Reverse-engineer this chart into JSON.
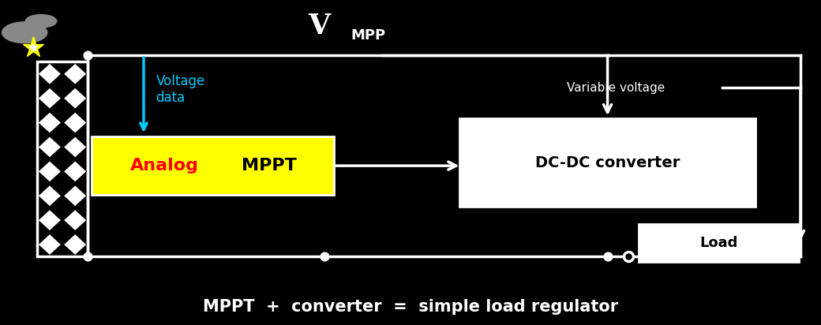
{
  "bg_color": "#000000",
  "fig_width": 10.4,
  "fig_height": 4.12,
  "title_text": "MPPT  +  converter  =  simple load regulator",
  "title_color": "#ffffff",
  "title_fontsize": 15,
  "vmpp_color": "#ffffff",
  "voltage_data_label": "Voltage\ndata",
  "voltage_data_color": "#00ccff",
  "variable_voltage_label": "Variable voltage",
  "variable_voltage_color": "#ffffff",
  "analog_text": "Analog",
  "analog_color": "#ff0000",
  "mppt_text": "MPPT",
  "mppt_text_color": "#000000",
  "mppt_box_color": "#ffff00",
  "dcdc_text": "DC-DC converter",
  "dcdc_box_facecolor": "#ffffff",
  "dcdc_text_color": "#000000",
  "load_text": "Load",
  "load_box_facecolor": "#ffffff",
  "load_text_color": "#000000",
  "line_color": "#ffffff",
  "line_width": 2.5
}
